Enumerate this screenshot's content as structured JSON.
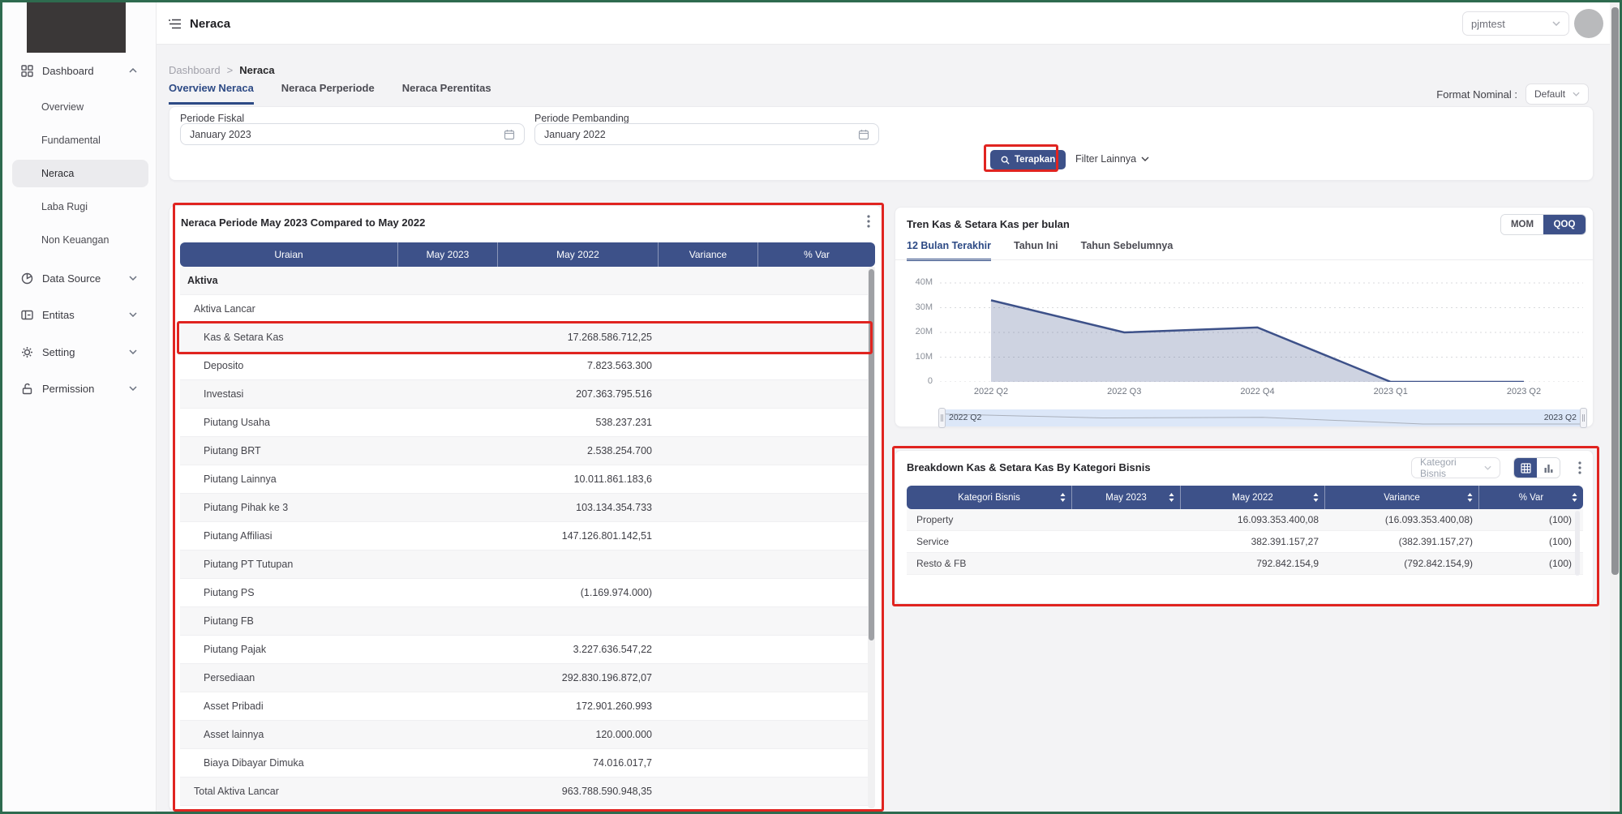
{
  "colors": {
    "accent_navy": "#3d5189",
    "active_tab_blue": "#2d4a85",
    "annotation_red": "#e02420",
    "screen_border_green": "#2e6b4f"
  },
  "topbar": {
    "title": "Neraca",
    "user_select": "pjmtest"
  },
  "sidebar": {
    "items": [
      {
        "label": "Dashboard",
        "icon": "dashboard-grid-icon",
        "state": "expanded",
        "children": [
          "Overview",
          "Fundamental",
          "Neraca",
          "Laba Rugi",
          "Non Keuangan"
        ],
        "active_child": "Neraca"
      },
      {
        "label": "Data Source",
        "icon": "pie-chart-icon",
        "state": "collapsed"
      },
      {
        "label": "Entitas",
        "icon": "entity-grid-icon",
        "state": "collapsed"
      },
      {
        "label": "Setting",
        "icon": "gear-icon",
        "state": "collapsed"
      },
      {
        "label": "Permission",
        "icon": "lock-icon",
        "state": "collapsed"
      }
    ]
  },
  "breadcrumb": {
    "parent": "Dashboard",
    "separator": ">",
    "current": "Neraca"
  },
  "page_tabs": [
    {
      "label": "Overview Neraca",
      "active": true
    },
    {
      "label": "Neraca Perperiode",
      "active": false
    },
    {
      "label": "Neraca Perentitas",
      "active": false
    }
  ],
  "format_nominal": {
    "label": "Format Nominal :",
    "value": "Default"
  },
  "filters": {
    "periode_fiskal": {
      "label": "Periode Fiskal",
      "value": "January 2023"
    },
    "periode_pembanding": {
      "label": "Periode Pembanding",
      "value": "January 2022"
    },
    "apply_label": "Terapkan",
    "more_filters_label": "Filter Lainnya"
  },
  "neraca_table": {
    "title": "Neraca Periode May 2023 Compared to May 2022",
    "columns": [
      "Uraian",
      "May 2023",
      "May 2022",
      "Variance",
      "% Var"
    ],
    "rows": [
      {
        "label": "Aktiva",
        "indent": 0,
        "bold": true,
        "may_2023": "",
        "may_2022": ""
      },
      {
        "label": "Aktiva Lancar",
        "indent": 1,
        "bold": false,
        "may_2023": "",
        "may_2022": ""
      },
      {
        "label": "Kas & Setara Kas",
        "indent": 2,
        "bold": false,
        "may_2023": "",
        "may_2022": "17.268.586.712,25",
        "highlighted": true
      },
      {
        "label": "Deposito",
        "indent": 2,
        "bold": false,
        "may_2023": "",
        "may_2022": "7.823.563.300"
      },
      {
        "label": "Investasi",
        "indent": 2,
        "bold": false,
        "may_2023": "",
        "may_2022": "207.363.795.516"
      },
      {
        "label": "Piutang Usaha",
        "indent": 2,
        "bold": false,
        "may_2023": "",
        "may_2022": "538.237.231"
      },
      {
        "label": "Piutang BRT",
        "indent": 2,
        "bold": false,
        "may_2023": "",
        "may_2022": "2.538.254.700"
      },
      {
        "label": "Piutang Lainnya",
        "indent": 2,
        "bold": false,
        "may_2023": "",
        "may_2022": "10.011.861.183,6"
      },
      {
        "label": "Piutang Pihak ke 3",
        "indent": 2,
        "bold": false,
        "may_2023": "",
        "may_2022": "103.134.354.733"
      },
      {
        "label": "Piutang Affiliasi",
        "indent": 2,
        "bold": false,
        "may_2023": "",
        "may_2022": "147.126.801.142,51"
      },
      {
        "label": "Piutang PT Tutupan",
        "indent": 2,
        "bold": false,
        "may_2023": "",
        "may_2022": ""
      },
      {
        "label": "Piutang PS",
        "indent": 2,
        "bold": false,
        "may_2023": "",
        "may_2022": "(1.169.974.000)"
      },
      {
        "label": "Piutang FB",
        "indent": 2,
        "bold": false,
        "may_2023": "",
        "may_2022": ""
      },
      {
        "label": "Piutang Pajak",
        "indent": 2,
        "bold": false,
        "may_2023": "",
        "may_2022": "3.227.636.547,22"
      },
      {
        "label": "Persediaan",
        "indent": 2,
        "bold": false,
        "may_2023": "",
        "may_2022": "292.830.196.872,07"
      },
      {
        "label": "Asset Pribadi",
        "indent": 2,
        "bold": false,
        "may_2023": "",
        "may_2022": "172.901.260.993"
      },
      {
        "label": "Asset lainnya",
        "indent": 2,
        "bold": false,
        "may_2023": "",
        "may_2022": "120.000.000"
      },
      {
        "label": "Biaya Dibayar Dimuka",
        "indent": 2,
        "bold": false,
        "may_2023": "",
        "may_2022": "74.016.017,7"
      },
      {
        "label": "Total Aktiva Lancar",
        "indent": 1,
        "bold": false,
        "may_2023": "",
        "may_2022": "963.788.590.948,35"
      }
    ]
  },
  "trend_chart": {
    "title": "Tren Kas & Setara Kas per bulan",
    "view_toggle": {
      "options": [
        "MOM",
        "QOQ"
      ],
      "active": "QOQ"
    },
    "range_tabs": [
      {
        "label": "12 Bulan Terakhir",
        "active": true
      },
      {
        "label": "Tahun Ini",
        "active": false
      },
      {
        "label": "Tahun Sebelumnya",
        "active": false
      }
    ],
    "brush": {
      "start_label": "2022 Q2",
      "end_label": "2023 Q2"
    },
    "chart_data": {
      "type": "area",
      "categories": [
        "2022 Q2",
        "2022 Q3",
        "2022 Q4",
        "2023 Q1",
        "2023 Q2"
      ],
      "values": [
        33000000,
        20000000,
        22000000,
        0,
        0
      ],
      "yticks": [
        "40M",
        "30M",
        "20M",
        "10M",
        "0"
      ],
      "ylim": [
        0,
        40000000
      ],
      "grid": "dotted-horizontal",
      "line_color": "#3d5189",
      "fill_color": "rgba(61,81,137,0.25)",
      "legend": "none"
    }
  },
  "breakdown_table": {
    "title": "Breakdown Kas & Setara Kas By Kategori Bisnis",
    "dimension_select": {
      "value": "Kategori Bisnis"
    },
    "view_icons": {
      "options": [
        "table-view",
        "bar-chart-view"
      ],
      "active": "table-view"
    },
    "columns": [
      "Kategori Bisnis",
      "May 2023",
      "May 2022",
      "Variance",
      "% Var"
    ],
    "rows": [
      {
        "label": "Property",
        "may_2023": "",
        "may_2022": "16.093.353.400,08",
        "variance": "(16.093.353.400,08)",
        "pct_var": "(100)"
      },
      {
        "label": "Service",
        "may_2023": "",
        "may_2022": "382.391.157,27",
        "variance": "(382.391.157,27)",
        "pct_var": "(100)"
      },
      {
        "label": "Resto & FB",
        "may_2023": "",
        "may_2022": "792.842.154,9",
        "variance": "(792.842.154,9)",
        "pct_var": "(100)"
      }
    ]
  }
}
